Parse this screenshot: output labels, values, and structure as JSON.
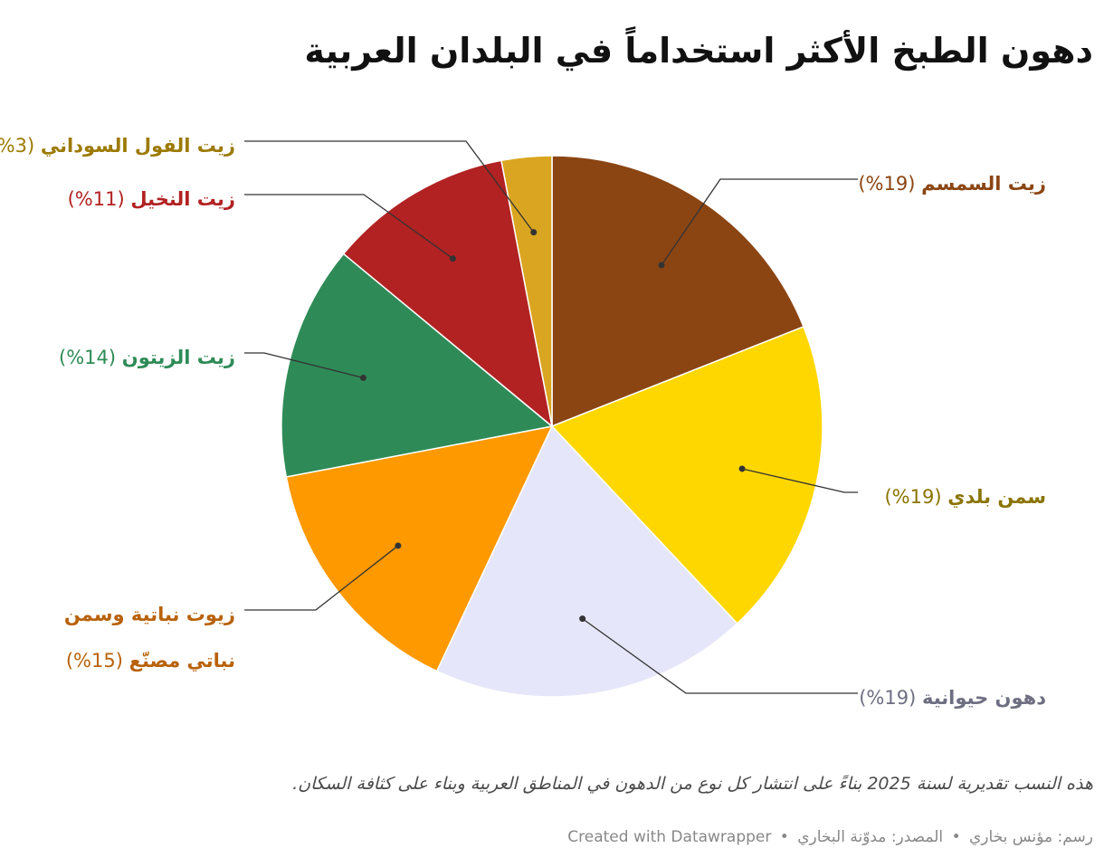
{
  "header": {
    "title": "دهون الطبخ الأكثر استخداماً في البلدان العربية"
  },
  "chart_data": {
    "type": "pie",
    "title": "دهون الطبخ الأكثر استخداماً في البلدان العربية",
    "label_template": "{name} ({value}%)",
    "slices": [
      {
        "name": "زيت السمسم",
        "value": 19,
        "color": "#8B4513",
        "label_color": "#8B4513"
      },
      {
        "name": "سمن بلدي",
        "value": 19,
        "color": "#FFD700",
        "label_color": "#8A7400"
      },
      {
        "name": "دهون حيوانية",
        "value": 19,
        "color": "#E6E6FA",
        "label_color": "#6E6E82"
      },
      {
        "name": "زيوت نباتية وسمن نباتي مصنّع",
        "value": 15,
        "color": "#FF9900",
        "label_color": "#B8620A"
      },
      {
        "name": "زيت الزيتون",
        "value": 14,
        "color": "#2E8B57",
        "label_color": "#2E8B57"
      },
      {
        "name": "زيت النخيل",
        "value": 11,
        "color": "#B22222",
        "label_color": "#B22222"
      },
      {
        "name": "زيت الفول السوداني",
        "value": 3,
        "color": "#DAA520",
        "label_color": "#9C7A00"
      }
    ]
  },
  "notes": "هذه النسب تقديرية لسنة 2025 بناءً على انتشار كل نوع من الدهون في المناطق العربية وبناء على كثافة السكان.",
  "footer": {
    "author": "رسم: مؤنس بخاري",
    "separator": "•",
    "source": "المصدر: مدوّنة البخاري",
    "credit": "Created with Datawrapper"
  }
}
